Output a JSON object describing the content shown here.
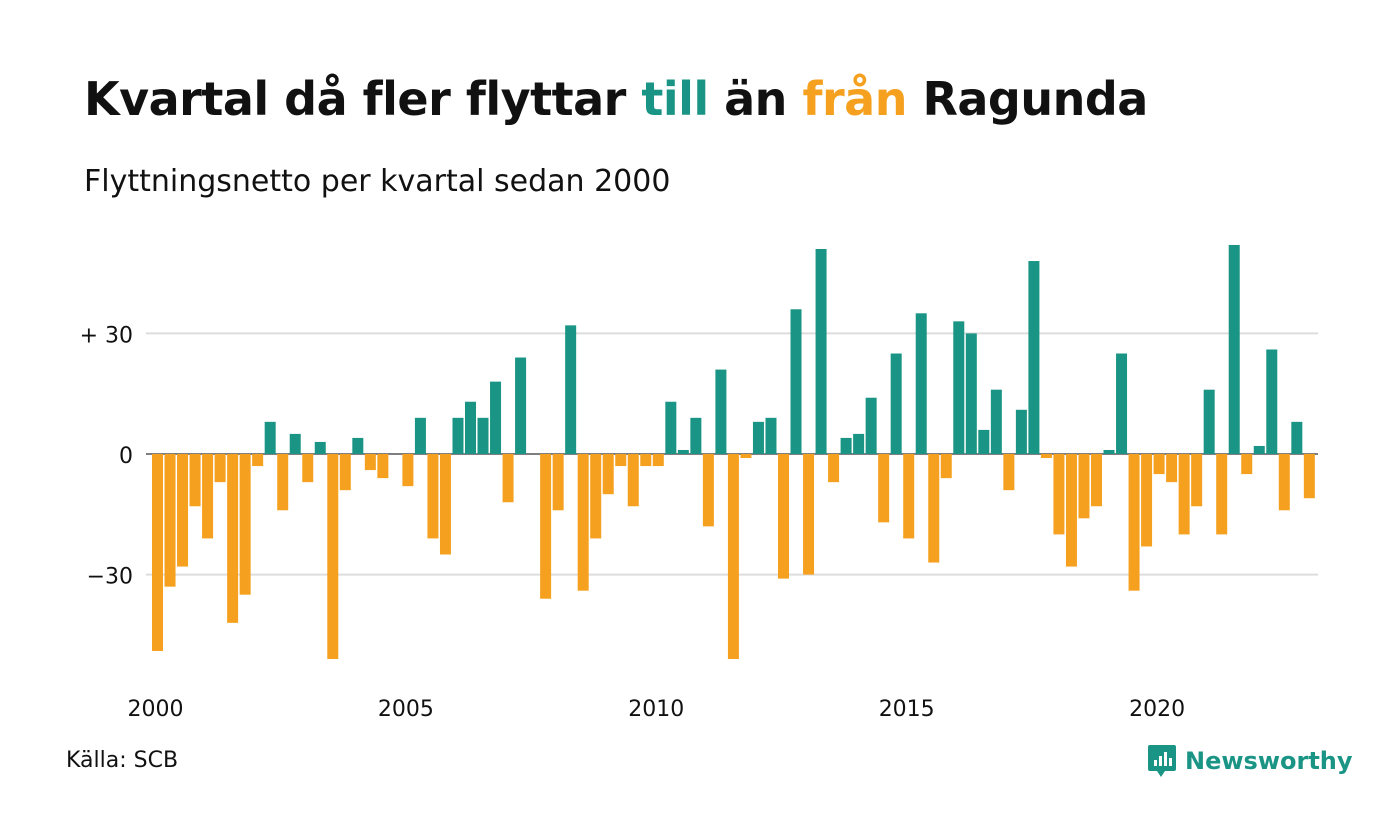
{
  "title": {
    "part1": "Kvartal då fler flyttar ",
    "till": "till",
    "part2": " än ",
    "fran": "från",
    "part3": " Ragunda"
  },
  "subtitle": "Flyttningsnetto per kvartal sedan 2000",
  "source": "Källa: SCB",
  "brand": "Newsworthy",
  "colors": {
    "positive": "#1a9484",
    "negative": "#f5a11f",
    "grid": "#dddddd",
    "text": "#111111"
  },
  "chart_data": {
    "type": "bar",
    "x_start_year": 2000,
    "x_ticks": [
      "2000",
      "2005",
      "2010",
      "2015",
      "2020"
    ],
    "y_ticks": [
      {
        "value": 30,
        "label": "+ 30"
      },
      {
        "value": 0,
        "label": "0"
      },
      {
        "value": -30,
        "label": "−30"
      }
    ],
    "ylim": [
      -55,
      55
    ],
    "values": [
      -49,
      -33,
      -28,
      -13,
      -21,
      -7,
      -42,
      -35,
      -3,
      8,
      -14,
      5,
      -7,
      3,
      -51,
      -9,
      4,
      -4,
      -6,
      0,
      -8,
      9,
      -21,
      -25,
      9,
      13,
      9,
      18,
      -12,
      24,
      0,
      -36,
      -14,
      32,
      -34,
      -21,
      -10,
      -3,
      -13,
      -3,
      -3,
      13,
      1,
      9,
      -18,
      21,
      -51,
      -1,
      8,
      9,
      -31,
      36,
      -30,
      51,
      -7,
      4,
      5,
      14,
      -17,
      25,
      -21,
      35,
      -27,
      -6,
      33,
      30,
      6,
      16,
      -9,
      11,
      48,
      -1,
      -20,
      -28,
      -16,
      -13,
      1,
      25,
      -34,
      -23,
      -5,
      -7,
      -20,
      -13,
      16,
      -20,
      52,
      -5,
      2,
      26,
      -14,
      8,
      -11
    ]
  }
}
